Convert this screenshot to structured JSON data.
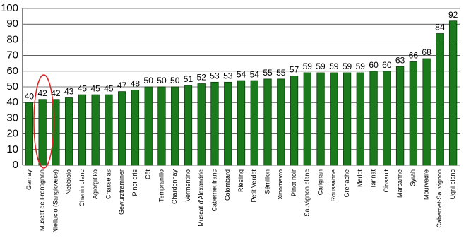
{
  "chart_data": {
    "type": "bar",
    "categories": [
      "Gamay",
      "Muscat de Frontignan",
      "Niellucio (Sangiovese)",
      "Nebbiolo",
      "Chenin blanc",
      "Agiorgitiko",
      "Chasselas",
      "Gewurztraminer",
      "Pinot gris",
      "Côt",
      "Tempranillo",
      "Chardonnay",
      "Vermentino",
      "Muscat d'Alexandrie",
      "Cabernet franc",
      "Colombard",
      "Riesling",
      "Petit Verdot",
      "Sémillon",
      "Xinomavro",
      "Pinot noir",
      "Sauvignon blanc",
      "Carignan",
      "Roussanne",
      "Grenache",
      "Merlot",
      "Tannat",
      "Cinsault",
      "Marsanne",
      "Syrah",
      "Mourvèdre",
      "Cabernet-Sauvignon",
      "Ugni blanc"
    ],
    "values": [
      40,
      42,
      42,
      43,
      45,
      45,
      45,
      47,
      48,
      50,
      50,
      50,
      51,
      52,
      53,
      53,
      54,
      54,
      55,
      55,
      57,
      59,
      59,
      59,
      59,
      59,
      60,
      60,
      63,
      66,
      68,
      84,
      92
    ],
    "color": "#1b7a1b",
    "ylim": [
      0,
      100
    ],
    "yticks": [
      0,
      10,
      20,
      30,
      40,
      50,
      60,
      70,
      80,
      90,
      100
    ],
    "grid": true
  }
}
